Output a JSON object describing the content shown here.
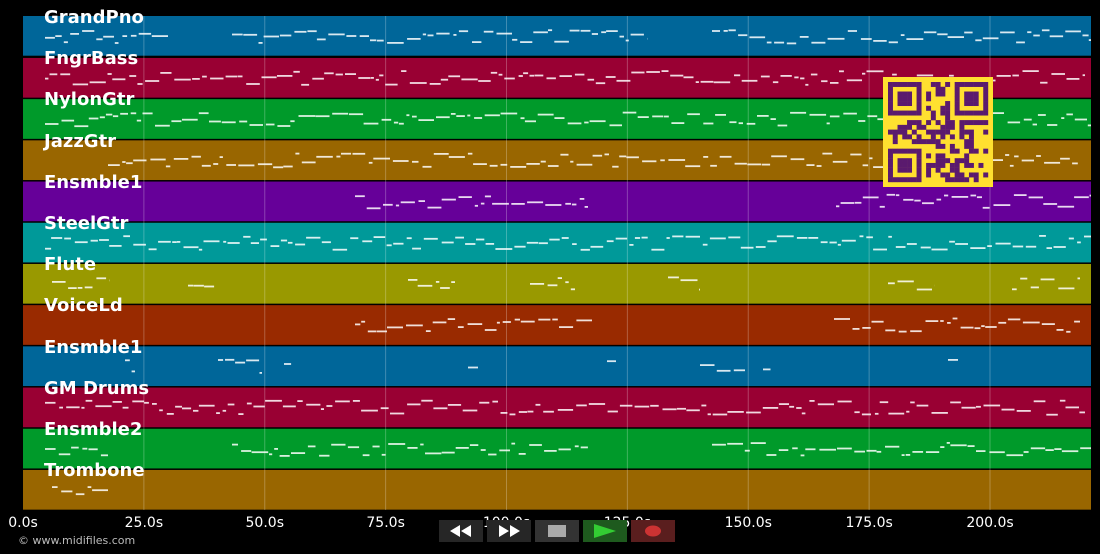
{
  "tracks": [
    {
      "name": "GrandPno",
      "color": "#006699"
    },
    {
      "name": "FngrBass",
      "color": "#990033"
    },
    {
      "name": "NylonGtr",
      "color": "#009a2a"
    },
    {
      "name": "JazzGtr",
      "color": "#996600"
    },
    {
      "name": "Ensmble1",
      "color": "#660099"
    },
    {
      "name": "SteelGtr",
      "color": "#009999"
    },
    {
      "name": "Flute",
      "color": "#999900"
    },
    {
      "name": "VoiceLd",
      "color": "#992a00"
    },
    {
      "name": "Ensmble1",
      "color": "#006699"
    },
    {
      "name": "GM Drums",
      "color": "#990033"
    },
    {
      "name": "Ensmble2",
      "color": "#009a2a"
    },
    {
      "name": "Trombone",
      "color": "#996600"
    }
  ],
  "timeline": {
    "ticks": [
      "0.0s",
      "25.0s",
      "50.0s",
      "75.0s",
      "100.0s",
      "125.0s",
      "150.0s",
      "175.0s",
      "200.0s"
    ]
  },
  "copyright": "© www.midifiles.com",
  "transport": {
    "rewind_icon": "rewind-icon",
    "fast_forward_icon": "fast-forward-icon",
    "stop_icon": "stop-icon",
    "play_icon": "play-icon",
    "record_icon": "record-icon",
    "play_color": "#33cc33",
    "record_color": "#cc3333"
  }
}
